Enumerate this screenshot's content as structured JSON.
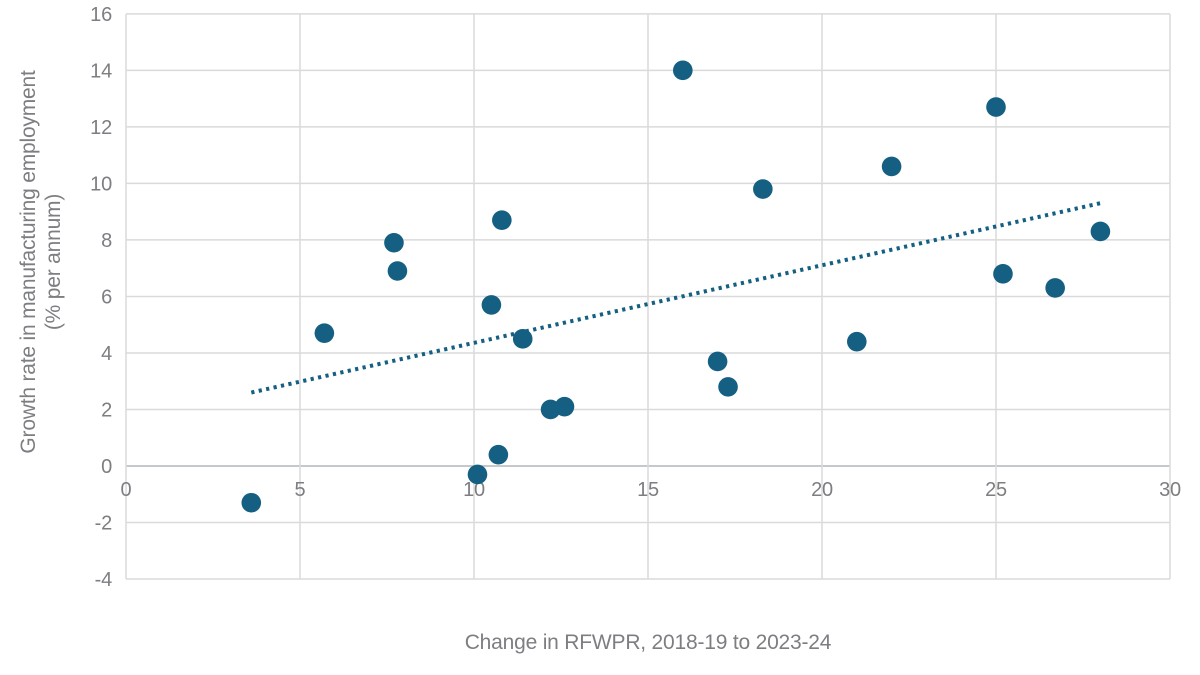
{
  "chart_data": {
    "type": "scatter",
    "xlabel": "Change in RFWPR, 2018-19 to 2023-24",
    "ylabel_line1": "Growth rate in manufacturing employment",
    "ylabel_line2": "(% per annum)",
    "xlim": [
      0,
      30
    ],
    "ylim": [
      -4,
      16
    ],
    "x_ticks": [
      0,
      5,
      10,
      15,
      20,
      25,
      30
    ],
    "y_ticks": [
      16,
      14,
      12,
      10,
      8,
      6,
      4,
      2,
      0,
      -2,
      -4
    ],
    "grid": true,
    "legend": "none",
    "points": [
      {
        "x": 3.6,
        "y": -1.3
      },
      {
        "x": 5.7,
        "y": 4.7
      },
      {
        "x": 7.7,
        "y": 7.9
      },
      {
        "x": 7.8,
        "y": 6.9
      },
      {
        "x": 10.1,
        "y": -0.3
      },
      {
        "x": 10.5,
        "y": 5.7
      },
      {
        "x": 10.7,
        "y": 0.4
      },
      {
        "x": 10.8,
        "y": 8.7
      },
      {
        "x": 11.4,
        "y": 4.5
      },
      {
        "x": 12.2,
        "y": 2.0
      },
      {
        "x": 12.6,
        "y": 2.1
      },
      {
        "x": 16.0,
        "y": 14.0
      },
      {
        "x": 17.0,
        "y": 3.7
      },
      {
        "x": 17.3,
        "y": 2.8
      },
      {
        "x": 18.3,
        "y": 9.8
      },
      {
        "x": 21.0,
        "y": 4.4
      },
      {
        "x": 22.0,
        "y": 10.6
      },
      {
        "x": 25.0,
        "y": 12.7
      },
      {
        "x": 25.2,
        "y": 6.8
      },
      {
        "x": 26.7,
        "y": 6.3
      },
      {
        "x": 28.0,
        "y": 8.3
      }
    ],
    "trendline": {
      "style": "dotted",
      "x1": 3.6,
      "y1": 2.6,
      "x2": 28.0,
      "y2": 9.3
    },
    "colors": {
      "point": "#156082",
      "trendline": "#156082",
      "gridline": "#dadada",
      "zero_axis_line": "#c6c9cb",
      "tick_label": "#7c7e82",
      "axis_title": "#7c7e82",
      "background": "#ffffff"
    }
  }
}
